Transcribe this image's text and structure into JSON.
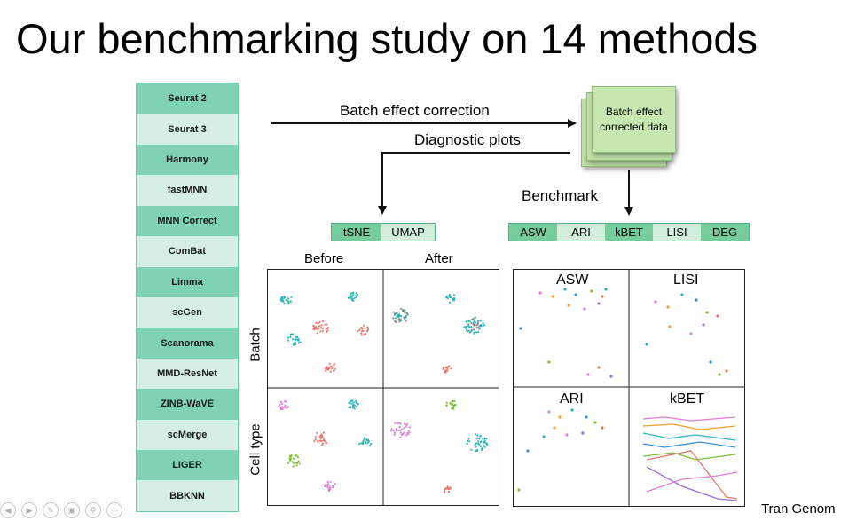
{
  "slide": {
    "title": "Our benchmarking study on 14 methods",
    "footer": "Tran Genom"
  },
  "methods": [
    "Seurat 2",
    "Seurat 3",
    "Harmony",
    "fastMNN",
    "MNN Correct",
    "ComBat",
    "Limma",
    "scGen",
    "Scanorama",
    "MMD-ResNet",
    "ZINB-WaVE",
    "scMerge",
    "LIGER",
    "BBKNN"
  ],
  "flow": {
    "correction_label": "Batch effect correction",
    "diagnostic_label": "Diagnostic plots",
    "benchmark_label": "Benchmark",
    "output_label": "Batch effect corrected data"
  },
  "plot_tags": [
    "tSNE",
    "UMAP"
  ],
  "metric_tags": [
    "ASW",
    "ARI",
    "kBET",
    "LISI",
    "DEG"
  ],
  "diagnostic_grid": {
    "columns": [
      "Before",
      "After"
    ],
    "rows": [
      "Batch",
      "Cell type"
    ]
  },
  "metric_panels": [
    "ASW",
    "LISI",
    "ARI",
    "kBET"
  ],
  "toolbar": {
    "icons": [
      "previous-icon",
      "next-icon",
      "pen-icon",
      "slides-icon",
      "zoom-icon",
      "more-icon"
    ]
  },
  "colors": {
    "method_dark": "#7fd3b4",
    "method_light": "#d5efe6",
    "card_green": "#c6e8b0",
    "tag_dark": "#77cc9c",
    "tag_light": "#d2eedb",
    "batch_cyan": "#2bb5b8",
    "batch_red": "#e8756a",
    "celltype_pink": "#e07fd0",
    "celltype_green": "#7dbf3a"
  }
}
